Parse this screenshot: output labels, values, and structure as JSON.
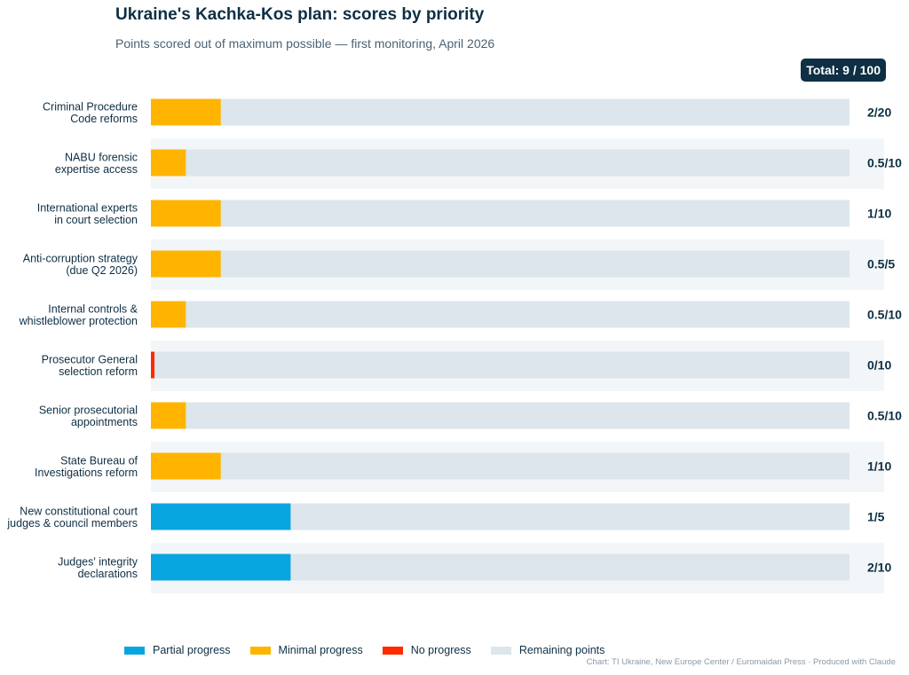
{
  "header": {
    "title": "Ukraine's Kachka-Kos plan: scores by priority",
    "subtitle": "Points scored out of maximum possible — first monitoring, April 2026",
    "total": "Total: 9 / 100"
  },
  "colors": {
    "partial": "#08a6e0",
    "minimal": "#ffb400",
    "none": "#ff2a00",
    "remaining": "#dce6ec",
    "stripe": "#f3f6f8",
    "text": "#0e2f44"
  },
  "chart_data": {
    "type": "bar",
    "orientation": "horizontal",
    "stacked": true,
    "title": "Ukraine's Kachka-Kos plan: scores by priority",
    "subtitle": "Points scored out of maximum possible — first monitoring, April 2026",
    "categories": [
      [
        "Criminal Procedure",
        "Code reforms"
      ],
      [
        "NABU forensic",
        "expertise access"
      ],
      [
        "International experts",
        "in court selection"
      ],
      [
        "Anti-corruption strategy",
        "(due Q2 2026)"
      ],
      [
        "Internal controls &",
        "whistleblower protection"
      ],
      [
        "Prosecutor General",
        "selection reform"
      ],
      [
        "Senior prosecutorial",
        "appointments"
      ],
      [
        "State Bureau of",
        "Investigations reform"
      ],
      [
        "New constitutional court",
        "judges & council members"
      ],
      [
        "Judges' integrity",
        "declarations"
      ]
    ],
    "fill_fraction": [
      0.1,
      0.05,
      0.1,
      0.1,
      0.05,
      0.0,
      0.05,
      0.1,
      0.2,
      0.2
    ],
    "status": [
      "minimal",
      "minimal",
      "minimal",
      "minimal",
      "minimal",
      "none",
      "minimal",
      "minimal",
      "partial",
      "partial"
    ],
    "score_labels": [
      "2/20",
      "0.5/10",
      "1/10",
      "0.5/5",
      "0.5/10",
      "0/10",
      "0.5/10",
      "1/10",
      "1/5",
      "2/10"
    ],
    "legend": [
      {
        "key": "partial",
        "label": "Partial progress"
      },
      {
        "key": "minimal",
        "label": "Minimal progress"
      },
      {
        "key": "none",
        "label": "No progress"
      },
      {
        "key": "remaining",
        "label": "Remaining points"
      }
    ],
    "legend_position": "bottom-left"
  },
  "footer": {
    "credit": "Chart: TI Ukraine, New Europe Center / Euromaidan Press · Produced with Claude"
  }
}
